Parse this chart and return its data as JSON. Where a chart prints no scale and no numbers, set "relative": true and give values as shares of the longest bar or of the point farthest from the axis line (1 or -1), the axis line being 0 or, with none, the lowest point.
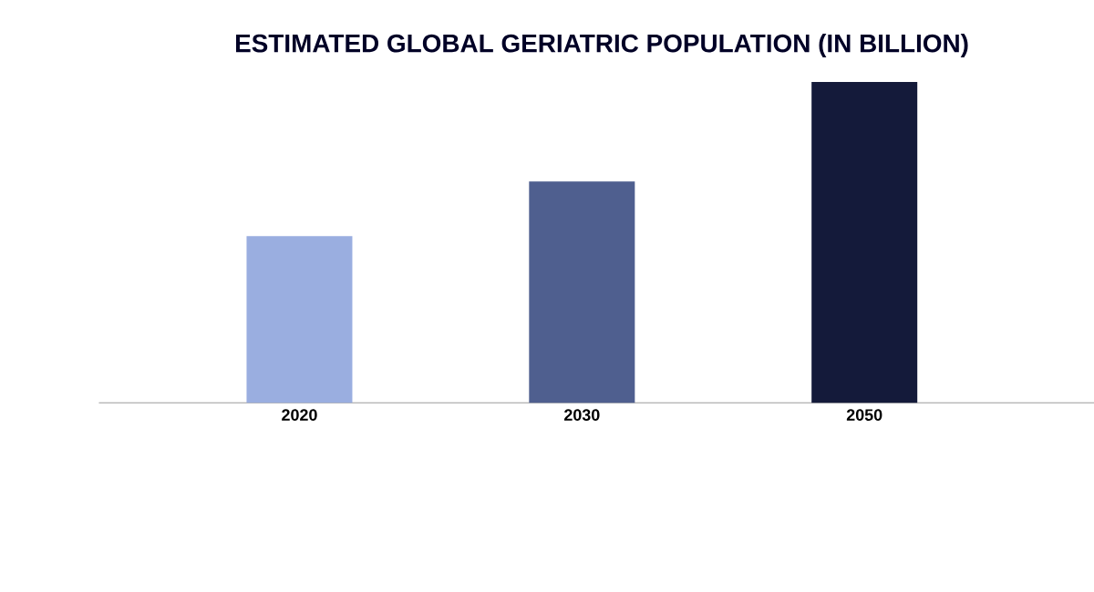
{
  "chart_data": {
    "type": "bar",
    "title": "ESTIMATED GLOBAL GERIATRIC POPULATION (IN BILLION)",
    "categories": [
      "2020",
      "2030",
      "2050"
    ],
    "values": [
      0.52,
      0.69,
      1
    ],
    "colors": [
      "#9aaee0",
      "#4f5f8f",
      "#141a3a"
    ],
    "relative": true
  }
}
